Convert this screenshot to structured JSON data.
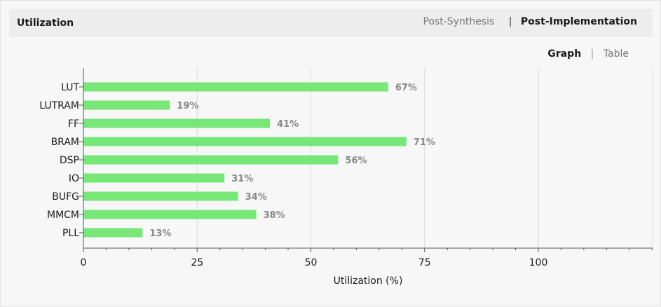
{
  "header": {
    "title": "Utilization",
    "tabs": [
      {
        "label": "Post-Synthesis",
        "active": false
      },
      {
        "label": "Post-Implementation",
        "active": true
      }
    ],
    "tab_separator": "|"
  },
  "view_toggle": {
    "graph_label": "Graph",
    "table_label": "Table",
    "separator": "|",
    "active": "Graph"
  },
  "colors": {
    "bar": "#77e777",
    "grid": "#d9d9d9",
    "axis": "#555555",
    "data_label": "#888888"
  },
  "chart_data": {
    "type": "bar",
    "orientation": "horizontal",
    "title": "",
    "xlabel": "Utilization (%)",
    "ylabel": "",
    "categories": [
      "LUT",
      "LUTRAM",
      "FF",
      "BRAM",
      "DSP",
      "IO",
      "BUFG",
      "MMCM",
      "PLL"
    ],
    "values": [
      67,
      19,
      41,
      71,
      56,
      31,
      34,
      38,
      13
    ],
    "value_labels": [
      "67%",
      "19%",
      "41%",
      "71%",
      "56%",
      "31%",
      "34%",
      "38%",
      "13%"
    ],
    "xlim": [
      0,
      125
    ],
    "xticks": [
      0,
      25,
      50,
      75,
      100
    ],
    "xtick_labels": [
      "0",
      "25",
      "50",
      "75",
      "100"
    ],
    "grid": true
  }
}
